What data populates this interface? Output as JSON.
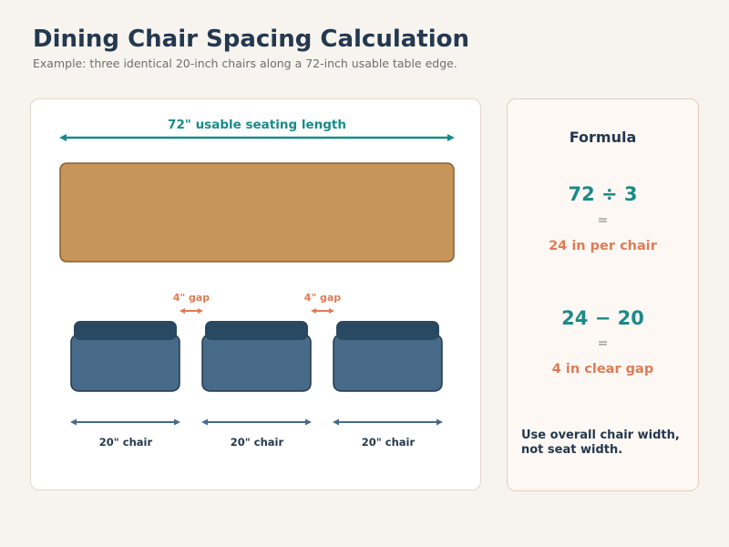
{
  "title": "Dining Chair Spacing Calculation",
  "subtitle": "Example: three identical 20-inch chairs along a 72-inch usable table edge.",
  "diagram": {
    "table_length_label": "72\" usable seating length",
    "gaps": [
      {
        "label": "4\" gap"
      },
      {
        "label": "4\" gap"
      }
    ],
    "chairs": [
      {
        "label": "20\" chair"
      },
      {
        "label": "20\" chair"
      },
      {
        "label": "20\" chair"
      }
    ]
  },
  "formula": {
    "title": "Formula",
    "steps": [
      {
        "expression": "72 ÷ 3",
        "equals": "=",
        "result": "24 in per chair"
      },
      {
        "expression": "24 − 20",
        "equals": "=",
        "result": "4 in clear gap"
      }
    ],
    "note": "Use overall chair width, not seat width."
  },
  "colors": {
    "teal": "#1a8a8a",
    "table": "#c69559",
    "chair": "#476a88",
    "chair_back": "#294862",
    "gap": "#e07b55",
    "dark": "#24384f"
  }
}
